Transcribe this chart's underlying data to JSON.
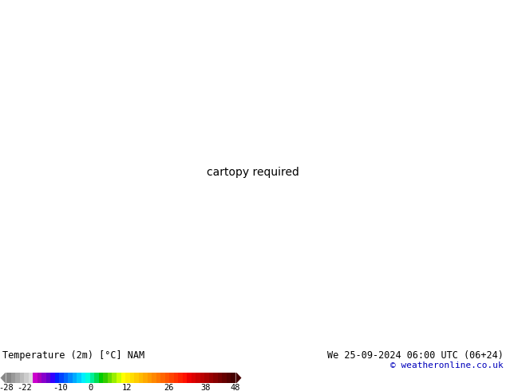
{
  "title_left": "Temperature (2m) [°C] NAM",
  "title_right": "We 25-09-2024 06:00 UTC (06+24)",
  "credit": "© weatheronline.co.uk",
  "colorbar_ticks": [
    -28,
    -22,
    -10,
    0,
    12,
    26,
    38,
    48
  ],
  "bg_color": "#ffffff",
  "fig_width": 6.34,
  "fig_height": 4.9,
  "dpi": 100,
  "extent": [
    -170,
    -50,
    10,
    75
  ],
  "temp_stops": [
    [
      -28,
      "#7f7f7f"
    ],
    [
      -22,
      "#aaaaaa"
    ],
    [
      -16,
      "#c8c8c8"
    ],
    [
      -10,
      "#dd00dd"
    ],
    [
      -4,
      "#9900cc"
    ],
    [
      0,
      "#3300ff"
    ],
    [
      4,
      "#0044ff"
    ],
    [
      8,
      "#0099ff"
    ],
    [
      12,
      "#00eeff"
    ],
    [
      16,
      "#00cc77"
    ],
    [
      18,
      "#009900"
    ],
    [
      20,
      "#007700"
    ],
    [
      22,
      "#99dd00"
    ],
    [
      24,
      "#ffff00"
    ],
    [
      26,
      "#ffcc00"
    ],
    [
      30,
      "#ff9900"
    ],
    [
      34,
      "#ff6600"
    ],
    [
      38,
      "#ff2200"
    ],
    [
      42,
      "#cc0000"
    ],
    [
      45,
      "#990000"
    ],
    [
      48,
      "#550000"
    ]
  ],
  "cb_stops_colors": [
    "#888888",
    "#999999",
    "#aaaaaa",
    "#bbbbbb",
    "#cccccc",
    "#dddddd",
    "#cc00cc",
    "#aa00bb",
    "#8800cc",
    "#6600cc",
    "#3300ff",
    "#0022ff",
    "#0044ff",
    "#0066ff",
    "#0088ff",
    "#00aaff",
    "#00ccff",
    "#00eeff",
    "#00ffdd",
    "#00ee99",
    "#00dd55",
    "#00cc00",
    "#33cc00",
    "#66dd00",
    "#99ee00",
    "#ccff00",
    "#ffff00",
    "#ffee00",
    "#ffdd00",
    "#ffcc00",
    "#ffbb00",
    "#ffaa00",
    "#ff9900",
    "#ff8800",
    "#ff7700",
    "#ff6600",
    "#ff5500",
    "#ff4400",
    "#ff3300",
    "#ff2200",
    "#ff1100",
    "#ee0000",
    "#dd0000",
    "#cc0000",
    "#bb0000",
    "#aa0000",
    "#990000",
    "#880000",
    "#770000",
    "#660000",
    "#550000",
    "#440000"
  ]
}
